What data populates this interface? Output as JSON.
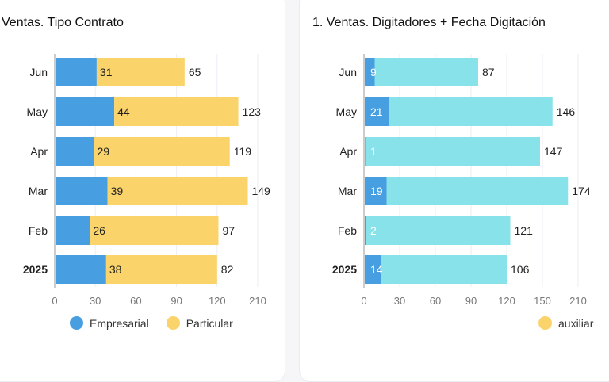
{
  "chart_data": [
    {
      "type": "bar",
      "orientation": "horizontal",
      "stacked": true,
      "title": "Ventas. Tipo Contrato",
      "categories": [
        "Jun",
        "May",
        "Apr",
        "Mar",
        "Feb",
        "2025"
      ],
      "series": [
        {
          "name": "Empresarial",
          "values": [
            31,
            44,
            29,
            39,
            26,
            38
          ],
          "color": "#479ee0"
        },
        {
          "name": "Particular",
          "values": [
            65,
            123,
            119,
            149,
            97,
            82
          ],
          "color": "#fad46a"
        }
      ],
      "xticks": [
        0,
        30,
        60,
        90,
        120,
        210
      ],
      "xlim": [
        0,
        210
      ],
      "grid": true,
      "legend": "bottom-center"
    },
    {
      "type": "bar",
      "orientation": "horizontal",
      "stacked": true,
      "title": "1. Ventas. Digitadores + Fecha Digitación",
      "categories": [
        "Jun",
        "May",
        "Apr",
        "Mar",
        "Feb",
        "2025"
      ],
      "series": [
        {
          "values": [
            9,
            21,
            1,
            19,
            2,
            14
          ],
          "color": "#479ee0"
        },
        {
          "values": [
            87,
            146,
            147,
            174,
            121,
            106
          ],
          "color": "#88e2ea"
        }
      ],
      "xticks": [
        0,
        30,
        60,
        90,
        120,
        150,
        210
      ],
      "xlim": [
        0,
        210
      ],
      "grid": true,
      "legend_entries": [
        {
          "name": "auxiliar",
          "color": "#fad46a"
        }
      ],
      "legend": "bottom-right"
    }
  ]
}
